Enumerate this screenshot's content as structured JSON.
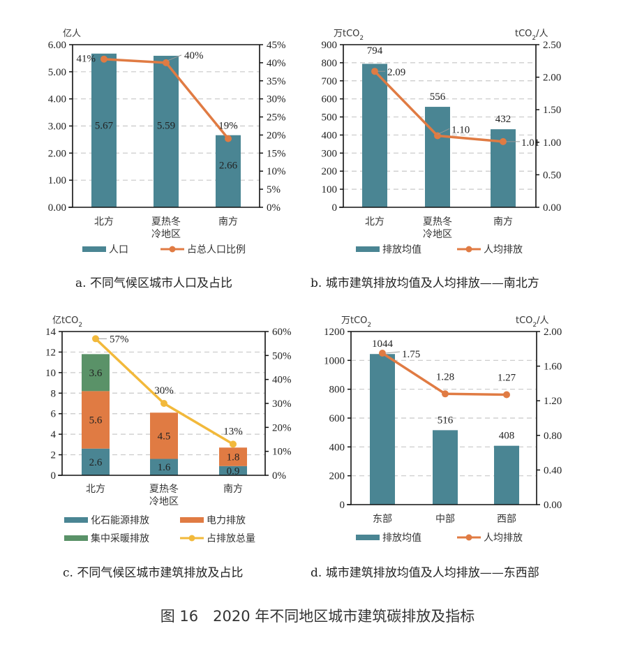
{
  "figure_caption": "图 16　2020 年不同地区城市建筑碳排放及指标",
  "colors": {
    "teal": "#4a8593",
    "orange": "#e07b43",
    "green": "#5a9268",
    "yellow": "#f2b93b",
    "grid": "#c8c8c8",
    "axis": "#111111"
  },
  "chart_data": [
    {
      "id": "a",
      "type": "bar+line",
      "caption": "a. 不同气候区城市人口及占比",
      "categories": [
        "北方",
        "夏热冬\n冷地区",
        "南方"
      ],
      "left_unit": "亿人",
      "right_unit": "",
      "ylim": [
        0,
        6
      ],
      "y_ticks": [
        "0.00",
        "1.00",
        "2.00",
        "3.00",
        "4.00",
        "5.00",
        "6.00"
      ],
      "y2lim": [
        0,
        45
      ],
      "y2_ticks": [
        "0%",
        "5%",
        "10%",
        "15%",
        "20%",
        "25%",
        "30%",
        "35%",
        "40%",
        "45%"
      ],
      "grid": true,
      "bars": {
        "name": "人口",
        "values": [
          5.67,
          5.59,
          2.66
        ],
        "labels": [
          "5.67",
          "5.59",
          "2.66"
        ]
      },
      "line": {
        "name": "占总人口比例",
        "values": [
          41,
          40,
          19
        ],
        "labels": [
          "41%",
          "40%",
          "19%"
        ]
      },
      "legend": [
        "人口",
        "占总人口比例"
      ],
      "legend_position": "bottom"
    },
    {
      "id": "b",
      "type": "bar+line",
      "caption": "b. 城市建筑排放均值及人均排放——南北方",
      "categories": [
        "北方",
        "夏热冬\n冷地区",
        "南方"
      ],
      "left_unit": "万tCO₂",
      "right_unit": "tCO₂/人",
      "ylim": [
        0,
        900
      ],
      "y_ticks": [
        "0",
        "100",
        "200",
        "300",
        "400",
        "500",
        "600",
        "700",
        "800",
        "900"
      ],
      "y2lim": [
        0,
        2.5
      ],
      "y2_ticks": [
        "0.00",
        "0.50",
        "1.00",
        "1.50",
        "2.00",
        "2.50"
      ],
      "grid": true,
      "bars": {
        "name": "排放均值",
        "values": [
          794,
          556,
          432
        ],
        "labels": [
          "794",
          "556",
          "432"
        ]
      },
      "line": {
        "name": "人均排放",
        "values": [
          2.09,
          1.1,
          1.01
        ],
        "labels": [
          "2.09",
          "1.10",
          "1.01"
        ]
      },
      "legend": [
        "排放均值",
        "人均排放"
      ],
      "legend_position": "bottom"
    },
    {
      "id": "c",
      "type": "stacked-bar+line",
      "caption": "c. 不同气候区城市建筑排放及占比",
      "categories": [
        "北方",
        "夏热冬\n冷地区",
        "南方"
      ],
      "left_unit": "亿tCO₂",
      "right_unit": "",
      "ylim": [
        0,
        14
      ],
      "y_ticks": [
        "0",
        "2",
        "4",
        "6",
        "8",
        "10",
        "12",
        "14"
      ],
      "y2lim": [
        0,
        60
      ],
      "y2_ticks": [
        "0%",
        "10%",
        "20%",
        "30%",
        "40%",
        "50%",
        "60%"
      ],
      "grid": true,
      "series": [
        {
          "name": "化石能源排放",
          "values": [
            2.6,
            1.6,
            0.9
          ],
          "labels": [
            "2.6",
            "1.6",
            "0.9"
          ]
        },
        {
          "name": "电力排放",
          "values": [
            5.6,
            4.5,
            1.8
          ],
          "labels": [
            "5.6",
            "4.5",
            "1.8"
          ]
        },
        {
          "name": "集中采暖排放",
          "values": [
            3.6,
            0,
            0
          ],
          "labels": [
            "3.6",
            "",
            ""
          ]
        }
      ],
      "line": {
        "name": "占排放总量",
        "values": [
          57,
          30,
          13
        ],
        "labels": [
          "57%",
          "30%",
          "13%"
        ]
      },
      "legend": [
        "化石能源排放",
        "电力排放",
        "集中采暖排放",
        "占排放总量"
      ],
      "legend_position": "bottom"
    },
    {
      "id": "d",
      "type": "bar+line",
      "caption": "d. 城市建筑排放均值及人均排放——东西部",
      "categories": [
        "东部",
        "中部",
        "西部"
      ],
      "left_unit": "万tCO₂",
      "right_unit": "tCO₂/人",
      "ylim": [
        0,
        1200
      ],
      "y_ticks": [
        "0",
        "200",
        "400",
        "600",
        "800",
        "1000",
        "1200"
      ],
      "y2lim": [
        0,
        2.0
      ],
      "y2_ticks": [
        "0.00",
        "0.40",
        "0.80",
        "1.20",
        "1.60",
        "2.00"
      ],
      "grid": true,
      "bars": {
        "name": "排放均值",
        "values": [
          1044,
          516,
          408
        ],
        "labels": [
          "1044",
          "516",
          "408"
        ]
      },
      "line": {
        "name": "人均排放",
        "values": [
          1.75,
          1.28,
          1.27
        ],
        "labels": [
          "1.75",
          "1.28",
          "1.27"
        ]
      },
      "legend": [
        "排放均值",
        "人均排放"
      ],
      "legend_position": "bottom"
    }
  ]
}
